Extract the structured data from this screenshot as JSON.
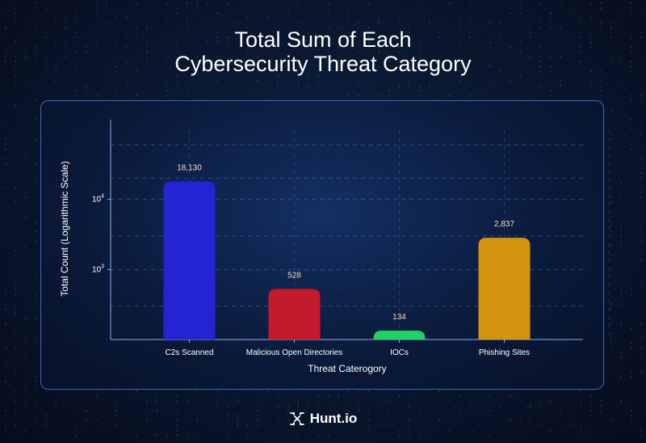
{
  "chart_data": {
    "type": "bar",
    "title_lines": [
      "Total Sum of Each",
      "Cybersecurity Threat Category"
    ],
    "xlabel": "Threat Caterogory",
    "ylabel": "Total Count (Logarithmic Scale)",
    "yscale": "log",
    "ylim": [
      100,
      100000
    ],
    "yticks": [
      {
        "base": "10",
        "exp": "3",
        "value": 1000
      },
      {
        "base": "10",
        "exp": "4",
        "value": 10000
      }
    ],
    "categories": [
      "C2s Scanned",
      "Malicious Open Directories",
      "IOCs",
      "Phishing Sites"
    ],
    "values": [
      18130,
      528,
      134,
      2837
    ],
    "value_labels": [
      "18,130",
      "528",
      "134",
      "2,837"
    ],
    "colors": [
      "#2424d4",
      "#c41a2e",
      "#22d166",
      "#d4930f"
    ],
    "grid": true
  },
  "brand": {
    "name": "Hunt.io",
    "icon": "hunt-logo-icon"
  }
}
